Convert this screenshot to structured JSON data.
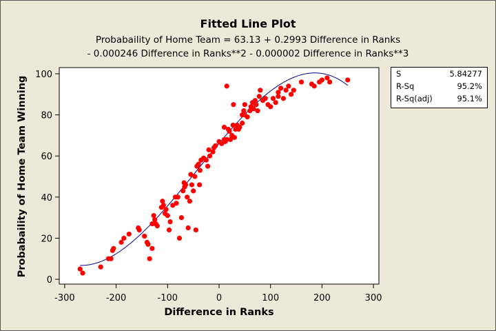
{
  "chart_data": {
    "type": "scatter",
    "title": "Fitted Line Plot",
    "subtitle_lines": [
      "Probabaility of Home Team =  63.13 + 0.2993 Difference in Ranks",
      "- 0.000246 Difference in Ranks**2 - 0.000002 Difference in Ranks**3"
    ],
    "xlabel": "Difference in Ranks",
    "ylabel": "Probabaility of Home Team Winning",
    "xlim": [
      -310,
      310
    ],
    "ylim": [
      -2,
      103
    ],
    "xticks": [
      -300,
      -200,
      -100,
      0,
      100,
      200,
      300
    ],
    "yticks": [
      0,
      20,
      40,
      60,
      80,
      100
    ],
    "grid": false,
    "point_color": "#FF0000",
    "line_color": "#00008B",
    "fit": {
      "coefficients": [
        63.13,
        0.2993,
        -0.000246,
        -2e-06
      ],
      "x_range": [
        -270,
        250
      ]
    },
    "points": [
      [
        -270,
        5
      ],
      [
        -265,
        3
      ],
      [
        -230,
        6
      ],
      [
        -215,
        10
      ],
      [
        -210,
        10
      ],
      [
        -207,
        14
      ],
      [
        -205,
        15
      ],
      [
        -190,
        18
      ],
      [
        -185,
        20
      ],
      [
        -175,
        22
      ],
      [
        -157,
        25
      ],
      [
        -155,
        24
      ],
      [
        -145,
        21
      ],
      [
        -140,
        18
      ],
      [
        -138,
        17
      ],
      [
        -135,
        10
      ],
      [
        -130,
        15
      ],
      [
        -130,
        27
      ],
      [
        -127,
        31
      ],
      [
        -125,
        29
      ],
      [
        -123,
        27
      ],
      [
        -120,
        26
      ],
      [
        -112,
        35
      ],
      [
        -110,
        38
      ],
      [
        -108,
        36
      ],
      [
        -105,
        32
      ],
      [
        -103,
        34
      ],
      [
        -100,
        31
      ],
      [
        -97,
        24
      ],
      [
        -95,
        28
      ],
      [
        -90,
        36
      ],
      [
        -85,
        40
      ],
      [
        -83,
        37
      ],
      [
        -80,
        40
      ],
      [
        -77,
        20
      ],
      [
        -73,
        30
      ],
      [
        -70,
        43
      ],
      [
        -68,
        47
      ],
      [
        -67,
        45
      ],
      [
        -65,
        46
      ],
      [
        -62,
        40
      ],
      [
        -60,
        25
      ],
      [
        -57,
        38
      ],
      [
        -55,
        51
      ],
      [
        -53,
        46
      ],
      [
        -50,
        43
      ],
      [
        -47,
        50
      ],
      [
        -45,
        24
      ],
      [
        -43,
        55
      ],
      [
        -40,
        56
      ],
      [
        -38,
        46
      ],
      [
        -37,
        53
      ],
      [
        -35,
        58
      ],
      [
        -30,
        59
      ],
      [
        -25,
        58
      ],
      [
        -22,
        55
      ],
      [
        -20,
        63
      ],
      [
        -18,
        60
      ],
      [
        -12,
        62
      ],
      [
        -10,
        64
      ],
      [
        -7,
        65
      ],
      [
        0,
        67
      ],
      [
        5,
        66
      ],
      [
        10,
        68
      ],
      [
        10,
        74
      ],
      [
        12,
        67
      ],
      [
        15,
        68
      ],
      [
        15,
        94
      ],
      [
        18,
        73
      ],
      [
        20,
        72
      ],
      [
        22,
        68
      ],
      [
        25,
        70
      ],
      [
        27,
        75
      ],
      [
        28,
        85
      ],
      [
        30,
        69
      ],
      [
        32,
        73
      ],
      [
        35,
        75
      ],
      [
        38,
        73
      ],
      [
        40,
        74
      ],
      [
        45,
        76
      ],
      [
        45,
        80
      ],
      [
        48,
        82
      ],
      [
        50,
        85
      ],
      [
        50,
        80
      ],
      [
        55,
        79
      ],
      [
        60,
        82
      ],
      [
        62,
        84
      ],
      [
        65,
        86
      ],
      [
        67,
        83
      ],
      [
        70,
        87
      ],
      [
        72,
        85
      ],
      [
        75,
        82
      ],
      [
        78,
        89
      ],
      [
        80,
        92
      ],
      [
        85,
        87
      ],
      [
        90,
        88
      ],
      [
        95,
        85
      ],
      [
        100,
        84
      ],
      [
        105,
        88
      ],
      [
        110,
        86
      ],
      [
        115,
        91
      ],
      [
        115,
        89
      ],
      [
        120,
        93
      ],
      [
        125,
        88
      ],
      [
        130,
        92
      ],
      [
        135,
        94
      ],
      [
        140,
        90
      ],
      [
        145,
        92
      ],
      [
        160,
        96
      ],
      [
        180,
        95
      ],
      [
        185,
        94
      ],
      [
        195,
        96
      ],
      [
        200,
        97
      ],
      [
        210,
        98
      ],
      [
        215,
        96
      ],
      [
        250,
        97
      ]
    ],
    "stats": [
      {
        "label": "S",
        "value": "5.84277"
      },
      {
        "label": "R-Sq",
        "value": "95.2%"
      },
      {
        "label": "R-Sq(adj)",
        "value": "95.1%"
      }
    ]
  }
}
